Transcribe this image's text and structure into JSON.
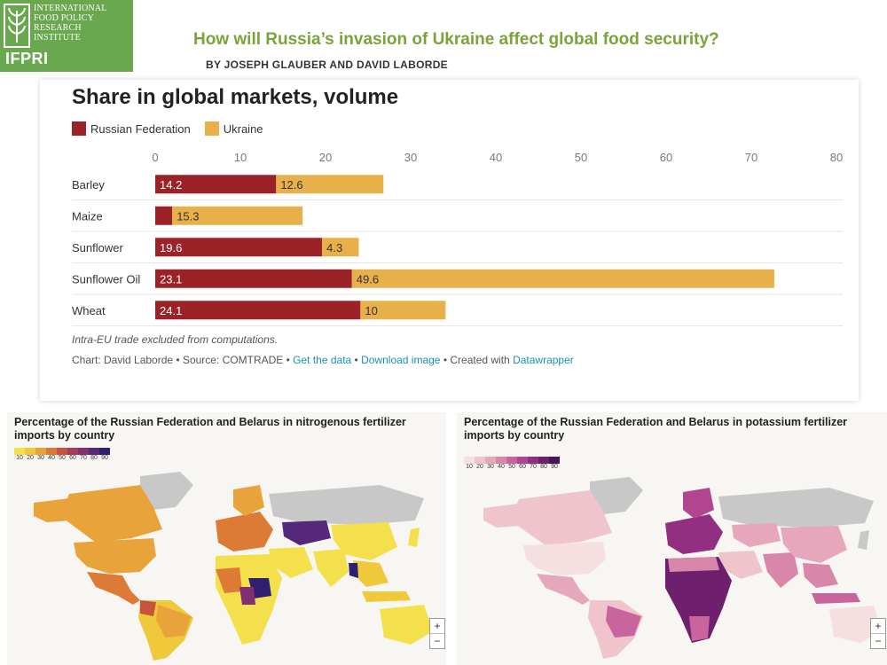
{
  "header": {
    "logo_lines": [
      "INTERNATIONAL",
      "FOOD POLICY",
      "RESEARCH",
      "INSTITUTE"
    ],
    "logo_abbr": "IFPRI",
    "headline": "How will Russia’s invasion of Ukraine affect global food security?",
    "byline": "BY JOSEPH GLAUBER AND DAVID LABORDE"
  },
  "chart_data": {
    "type": "bar",
    "orientation": "horizontal",
    "stacked": true,
    "title": "Share in global markets, volume",
    "categories": [
      "Barley",
      "Maize",
      "Sunflower",
      "Sunflower Oil",
      "Wheat"
    ],
    "series": [
      {
        "name": "Russian Federation",
        "color": "#9b2226",
        "values": [
          14.2,
          2,
          19.6,
          23.1,
          24.1
        ],
        "labels": [
          "14.2",
          "",
          "19.6",
          "23.1",
          "24.1"
        ]
      },
      {
        "name": "Ukraine",
        "color": "#e8b04b",
        "values": [
          12.6,
          15.3,
          4.3,
          49.6,
          10
        ],
        "labels": [
          "12.6",
          "15.3",
          "4.3",
          "49.6",
          "10"
        ]
      }
    ],
    "xlim": [
      0,
      80
    ],
    "xticks": [
      "0",
      "10",
      "20",
      "30",
      "40",
      "50",
      "60",
      "70",
      "80"
    ],
    "xlabel": "",
    "ylabel": "",
    "grid": true,
    "legend_position": "top-left",
    "note": "Intra-EU trade excluded from computations.",
    "credit": {
      "prefix": "Chart: David Laborde • Source: COMTRADE • ",
      "get_data": "Get the data",
      "sep1": " • ",
      "download": "Download image",
      "sep2": " • Created with ",
      "tool": "Datawrapper"
    }
  },
  "maps": {
    "nitrogen": {
      "title": "Percentage of the Russian Federation and Belarus in nitrogenous fertilizer imports by country",
      "scale_labels": [
        "10",
        "20",
        "30",
        "40",
        "50",
        "60",
        "70",
        "80",
        "90"
      ],
      "scale_colors": [
        "#f4e04d",
        "#f0c93a",
        "#e8a33a",
        "#dd7a35",
        "#c9523a",
        "#a83a5a",
        "#7f2f72",
        "#55287a",
        "#2f1f6e"
      ]
    },
    "potassium": {
      "title": "Percentage of the Russian Federation and Belarus in potassium fertilizer imports by country",
      "scale_labels": [
        "10",
        "20",
        "30",
        "40",
        "50",
        "60",
        "70",
        "80",
        "90"
      ],
      "scale_colors": [
        "#f6dfe0",
        "#efc4cc",
        "#e6a6bb",
        "#d986ab",
        "#c9649d",
        "#b2458f",
        "#922f80",
        "#6e1f6e",
        "#4a145a"
      ]
    },
    "zoom_in": "+",
    "zoom_out": "−"
  }
}
